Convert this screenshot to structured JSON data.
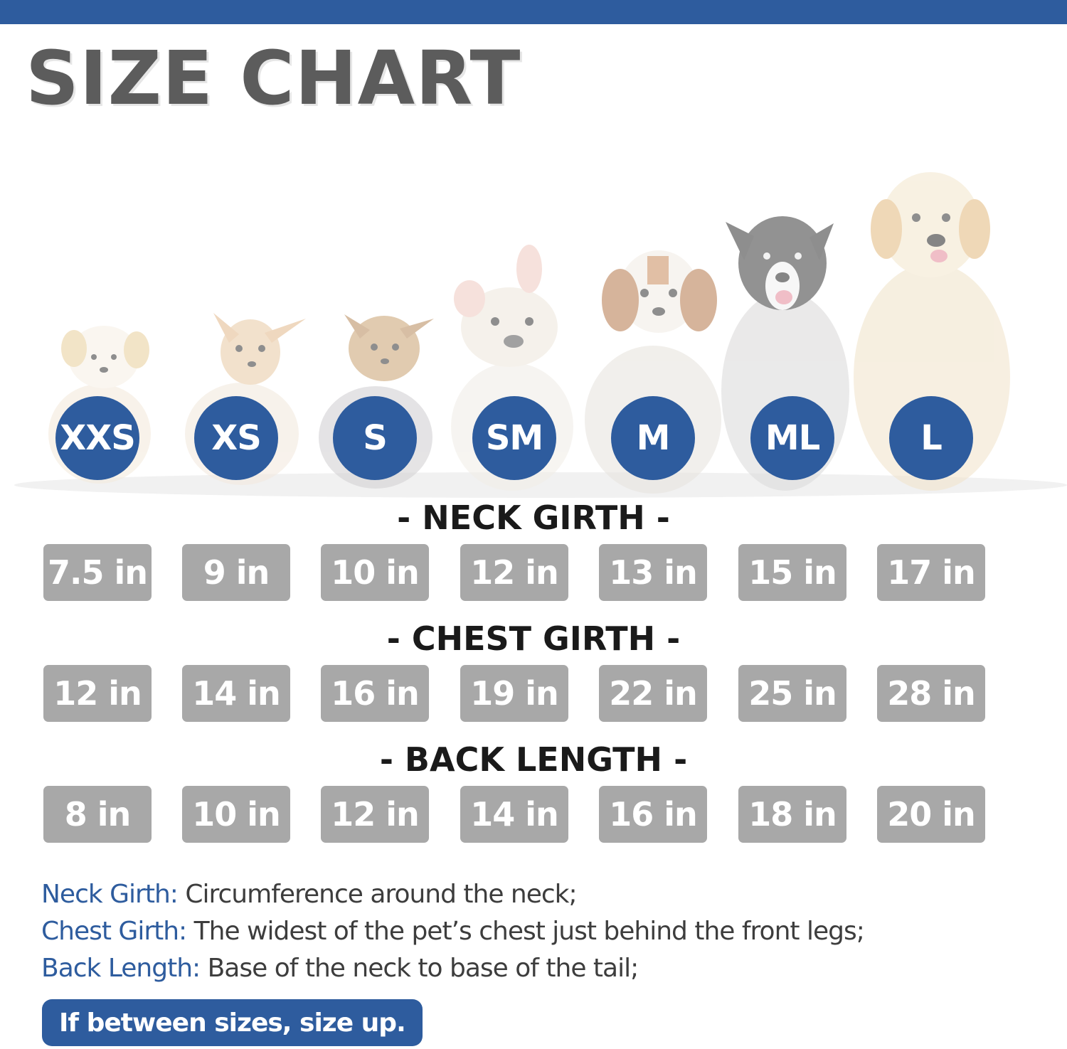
{
  "header": {
    "title": "SIZE CHART"
  },
  "colors": {
    "accent": "#2e5c9e",
    "title": "#5c5c5c",
    "cell": "#a8a8a8",
    "term": "#2e5c9e"
  },
  "sizes": [
    "XXS",
    "XS",
    "S",
    "SM",
    "M",
    "ML",
    "L"
  ],
  "sections": [
    {
      "title": "- NECK GIRTH -",
      "values": [
        "7.5 in",
        "9 in",
        "10 in",
        "12 in",
        "13 in",
        "15 in",
        "17 in"
      ]
    },
    {
      "title": "- CHEST GIRTH -",
      "values": [
        "12 in",
        "14 in",
        "16 in",
        "19 in",
        "22 in",
        "25 in",
        "28 in"
      ]
    },
    {
      "title": "- BACK LENGTH -",
      "values": [
        "8 in",
        "10 in",
        "12 in",
        "14 in",
        "16 in",
        "18 in",
        "20 in"
      ]
    }
  ],
  "definitions": [
    {
      "term": "Neck Girth:",
      "text": " Circumference around the neck;"
    },
    {
      "term": "Chest Girth:",
      "text": " The widest of the pet’s chest just behind the front legs;"
    },
    {
      "term": "Back Length:",
      "text": " Base of the neck to base of the tail;"
    }
  ],
  "note": "If between sizes, size up.",
  "dogs": [
    {
      "icon": "puppy-icon",
      "size": "XXS"
    },
    {
      "icon": "chihuahua-icon",
      "size": "XS"
    },
    {
      "icon": "yorkie-icon",
      "size": "S"
    },
    {
      "icon": "french-bulldog-icon",
      "size": "SM"
    },
    {
      "icon": "beagle-icon",
      "size": "M"
    },
    {
      "icon": "border-collie-icon",
      "size": "ML"
    },
    {
      "icon": "golden-retriever-icon",
      "size": "L"
    }
  ]
}
